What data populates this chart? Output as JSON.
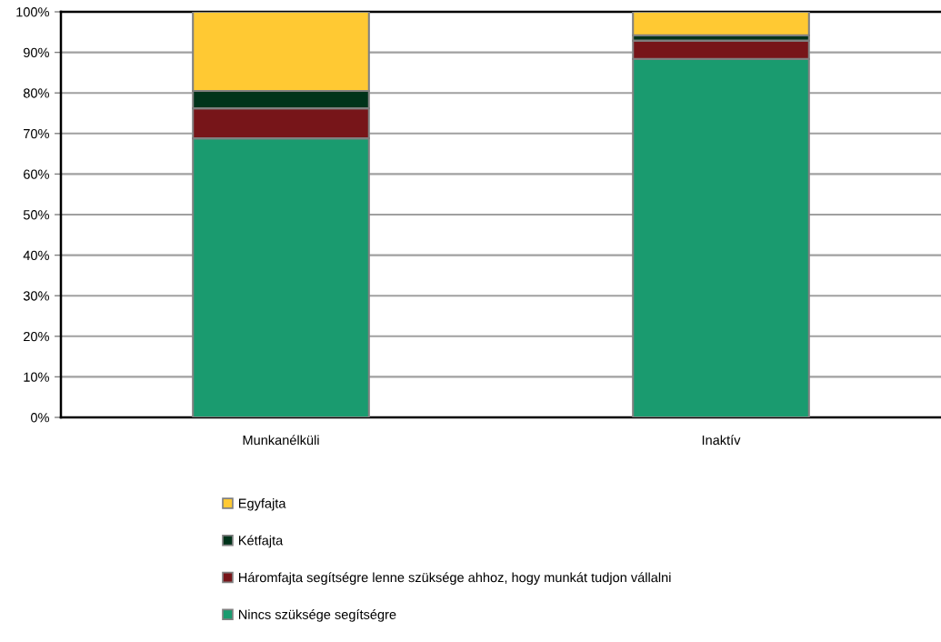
{
  "chart_data": {
    "type": "bar",
    "stacked": true,
    "categories": [
      "Munkanélküli",
      "Inaktív"
    ],
    "series": [
      {
        "name": "Nincs szüksége segítségre",
        "color": "#1a9b6f",
        "values": [
          68.8,
          88.4
        ]
      },
      {
        "name": "Háromfajta segítségre lenne szüksége ahhoz, hogy munkát tudjon vállalni",
        "color": "#771519",
        "values": [
          7.4,
          4.5
        ]
      },
      {
        "name": "Kétfajta",
        "color": "#00331a",
        "values": [
          4.3,
          1.3
        ]
      },
      {
        "name": "Egyfajta",
        "color": "#ffc933",
        "values": [
          19.5,
          5.8
        ]
      }
    ],
    "ylim": [
      0,
      100
    ],
    "yticks": [
      {
        "value": 0,
        "label": "0%"
      },
      {
        "value": 10,
        "label": "10%"
      },
      {
        "value": 20,
        "label": "20%"
      },
      {
        "value": 30,
        "label": "30%"
      },
      {
        "value": 40,
        "label": "40%"
      },
      {
        "value": 50,
        "label": "50%"
      },
      {
        "value": 60,
        "label": "60%"
      },
      {
        "value": 70,
        "label": "70%"
      },
      {
        "value": 80,
        "label": "80%"
      },
      {
        "value": 90,
        "label": "90%"
      },
      {
        "value": 100,
        "label": "100%"
      }
    ],
    "grid": "y",
    "legend": "bottom"
  }
}
